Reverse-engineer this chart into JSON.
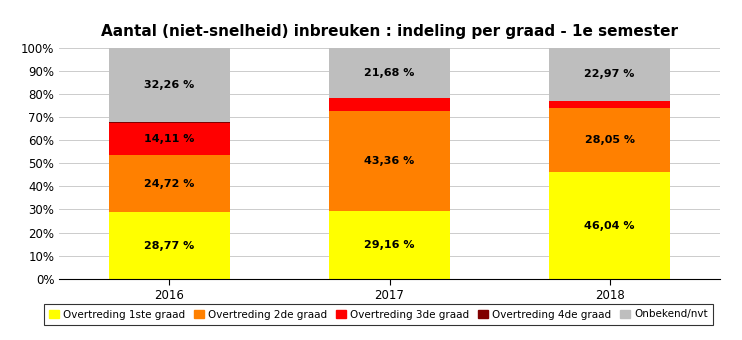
{
  "title": "Aantal (niet-snelheid) inbreuken : indeling per graad - 1e semester",
  "categories": [
    "2016",
    "2017",
    "2018"
  ],
  "series": {
    "Overtreding 1ste graad": [
      28.77,
      29.16,
      46.04
    ],
    "Overtreding 2de graad": [
      24.72,
      43.36,
      28.05
    ],
    "Overtreding 3de graad": [
      14.11,
      5.8,
      2.94
    ],
    "Overtreding 4de graad": [
      0.14,
      0.0,
      0.0
    ],
    "Onbekend/nvt": [
      32.26,
      21.68,
      22.97
    ]
  },
  "colors": {
    "Overtreding 1ste graad": "#FFFF00",
    "Overtreding 2de graad": "#FF8000",
    "Overtreding 3de graad": "#FF0000",
    "Overtreding 4de graad": "#800000",
    "Onbekend/nvt": "#BEBEBE"
  },
  "labels": {
    "2016": {
      "Overtreding 1ste graad": "28,77 %",
      "Overtreding 2de graad": "24,72 %",
      "Overtreding 3de graad": "14,11 %",
      "Overtreding 4de graad": "",
      "Onbekend/nvt": "32,26 %"
    },
    "2017": {
      "Overtreding 1ste graad": "29,16 %",
      "Overtreding 2de graad": "43,36 %",
      "Overtreding 3de graad": "",
      "Overtreding 4de graad": "",
      "Onbekend/nvt": "21,68 %"
    },
    "2018": {
      "Overtreding 1ste graad": "46,04 %",
      "Overtreding 2de graad": "28,05 %",
      "Overtreding 3de graad": "",
      "Overtreding 4de graad": "",
      "Onbekend/nvt": "22,97 %"
    }
  },
  "ylim": [
    0,
    100
  ],
  "yticks": [
    0,
    10,
    20,
    30,
    40,
    50,
    60,
    70,
    80,
    90,
    100
  ],
  "ytick_labels": [
    "0%",
    "10%",
    "20%",
    "30%",
    "40%",
    "50%",
    "60%",
    "70%",
    "80%",
    "90%",
    "100%"
  ],
  "bar_width": 0.55,
  "title_fontsize": 11,
  "label_fontsize": 8,
  "tick_fontsize": 8.5,
  "legend_fontsize": 7.5,
  "background_color": "#FFFFFF",
  "grid_color": "#CCCCCC"
}
